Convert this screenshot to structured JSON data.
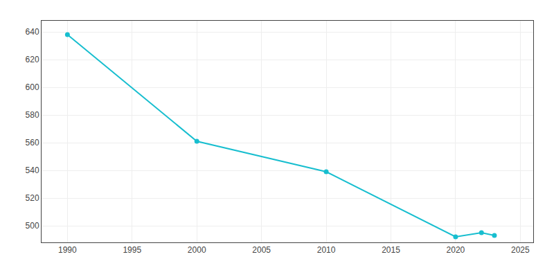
{
  "chart_data": {
    "type": "line",
    "x": [
      1990,
      2000,
      2010,
      2020,
      2022,
      2023
    ],
    "values": [
      638,
      561,
      539,
      492,
      495,
      493
    ],
    "color": "#17BECF",
    "marker": "circle",
    "xlim": [
      1988,
      2026
    ],
    "ylim": [
      488,
      648
    ],
    "xticks": [
      1990,
      1995,
      2000,
      2005,
      2010,
      2015,
      2020,
      2025
    ],
    "yticks": [
      500,
      520,
      540,
      560,
      580,
      600,
      620,
      640
    ],
    "grid": true
  }
}
